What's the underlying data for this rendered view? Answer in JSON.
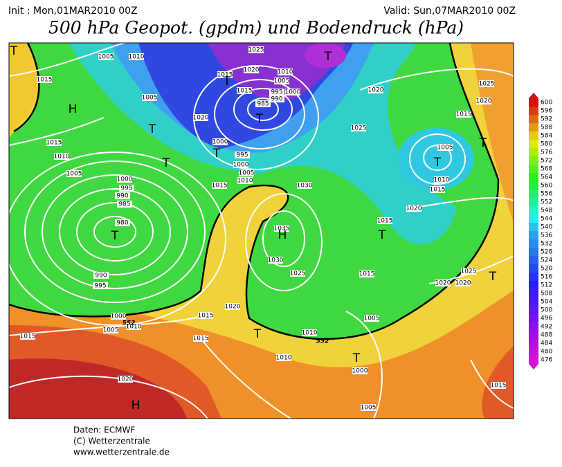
{
  "header": {
    "init": "Init : Mon,01MAR2010 00Z",
    "valid": "Valid: Sun,07MAR2010 00Z",
    "title": "500 hPa Geopot. (gpdm) und Bodendruck (hPa)"
  },
  "map": {
    "isobar_labels": [
      1005,
      1010,
      1025,
      1020,
      1015,
      1010,
      1005,
      1000,
      995,
      990,
      985,
      1015,
      1015,
      1005,
      1020,
      1000,
      995,
      1000,
      1005,
      1010,
      1015,
      1030,
      1020,
      1025,
      1005,
      1010,
      1015,
      1025,
      1020,
      1015,
      1015,
      1010,
      1005,
      1000,
      995,
      990,
      985,
      980,
      990,
      995,
      1000,
      1005,
      1010,
      1015,
      1015,
      1015,
      1020,
      1035,
      1030,
      1025,
      1020,
      1015,
      1015,
      1025,
      1020,
      1020,
      1005,
      1010,
      1010,
      1000,
      1005,
      1020,
      1015
    ],
    "pressure_centers": [
      "T",
      "T",
      "H",
      "T",
      "T",
      "T",
      "T",
      "T",
      "T",
      "T",
      "T",
      "H",
      "T",
      "T",
      "T",
      "T",
      "H"
    ],
    "contour_labels": [
      552,
      552
    ]
  },
  "colorbar": {
    "levels": [
      600,
      596,
      592,
      588,
      584,
      580,
      576,
      572,
      568,
      564,
      560,
      556,
      552,
      548,
      544,
      540,
      536,
      532,
      528,
      524,
      520,
      516,
      512,
      508,
      504,
      500,
      496,
      492,
      488,
      484,
      480,
      476
    ]
  },
  "footer": {
    "source": "Daten: ECMWF",
    "copyright": "(C) Wetterzentrale",
    "url": "www.wetterzentrale.de"
  }
}
